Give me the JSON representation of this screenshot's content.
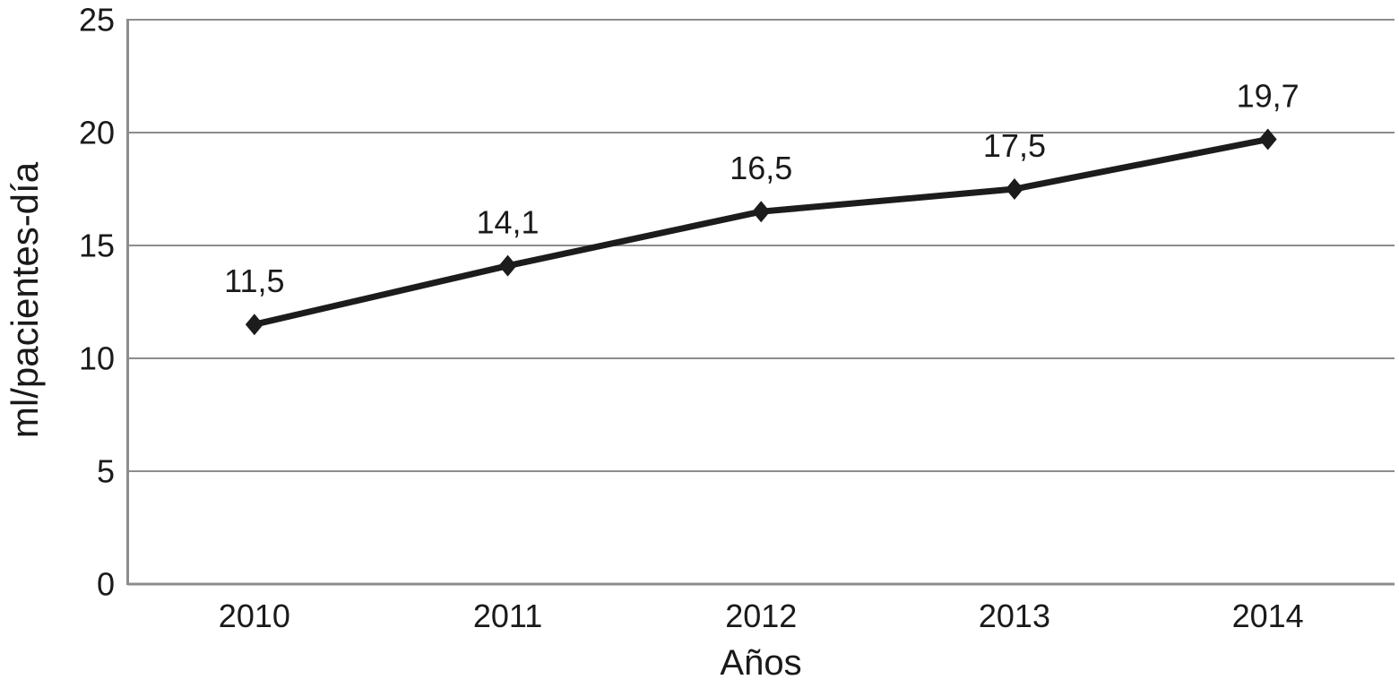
{
  "chart_data": {
    "type": "line",
    "categories": [
      "2010",
      "2011",
      "2012",
      "2013",
      "2014"
    ],
    "series": [
      {
        "name": "ml/pacientes-día",
        "values": [
          11.5,
          14.1,
          16.5,
          17.5,
          19.7
        ]
      }
    ],
    "data_labels": [
      "11,5",
      "14,1",
      "16,5",
      "17,5",
      "19,7"
    ],
    "title": "",
    "xlabel": "Años",
    "ylabel": "ml/pacientes-día",
    "ylim": [
      0,
      25
    ],
    "y_ticks": [
      0,
      5,
      10,
      15,
      20,
      25
    ],
    "grid": true,
    "legend": "none",
    "marker": "diamond",
    "colors": {
      "line": "#1c1c1c",
      "marker": "#1c1c1c",
      "grid": "#8c8c8c",
      "axis": "#8c8c8c",
      "text": "#1a1a1a",
      "background": "#ffffff"
    }
  }
}
